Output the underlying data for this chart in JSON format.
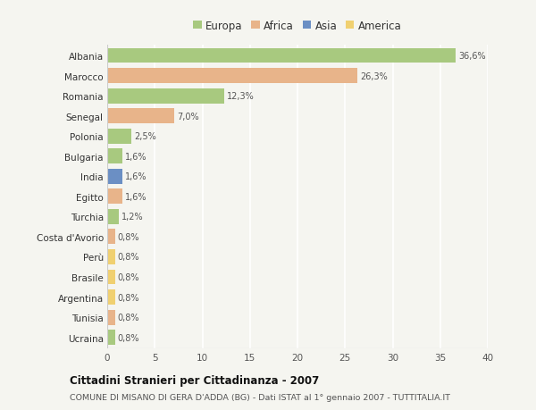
{
  "countries": [
    "Albania",
    "Marocco",
    "Romania",
    "Senegal",
    "Polonia",
    "Bulgaria",
    "India",
    "Egitto",
    "Turchia",
    "Costa d'Avorio",
    "Perù",
    "Brasile",
    "Argentina",
    "Tunisia",
    "Ucraina"
  ],
  "values": [
    36.6,
    26.3,
    12.3,
    7.0,
    2.5,
    1.6,
    1.6,
    1.6,
    1.2,
    0.8,
    0.8,
    0.8,
    0.8,
    0.8,
    0.8
  ],
  "labels": [
    "36,6%",
    "26,3%",
    "12,3%",
    "7,0%",
    "2,5%",
    "1,6%",
    "1,6%",
    "1,6%",
    "1,2%",
    "0,8%",
    "0,8%",
    "0,8%",
    "0,8%",
    "0,8%",
    "0,8%"
  ],
  "continents": [
    "Europa",
    "Africa",
    "Europa",
    "Africa",
    "Europa",
    "Europa",
    "Asia",
    "Africa",
    "Europa",
    "Africa",
    "America",
    "America",
    "America",
    "Africa",
    "Europa"
  ],
  "colors": {
    "Europa": "#a8c97f",
    "Africa": "#e8b48a",
    "Asia": "#6b8fc4",
    "America": "#f0d070"
  },
  "xlim": [
    0,
    40
  ],
  "xticks": [
    0,
    5,
    10,
    15,
    20,
    25,
    30,
    35,
    40
  ],
  "title": "Cittadini Stranieri per Cittadinanza - 2007",
  "subtitle": "COMUNE DI MISANO DI GERA D'ADDA (BG) - Dati ISTAT al 1° gennaio 2007 - TUTTITALIA.IT",
  "background_color": "#f5f5f0",
  "grid_color": "#ffffff",
  "bar_height": 0.75,
  "legend_entries": [
    "Europa",
    "Africa",
    "Asia",
    "America"
  ]
}
